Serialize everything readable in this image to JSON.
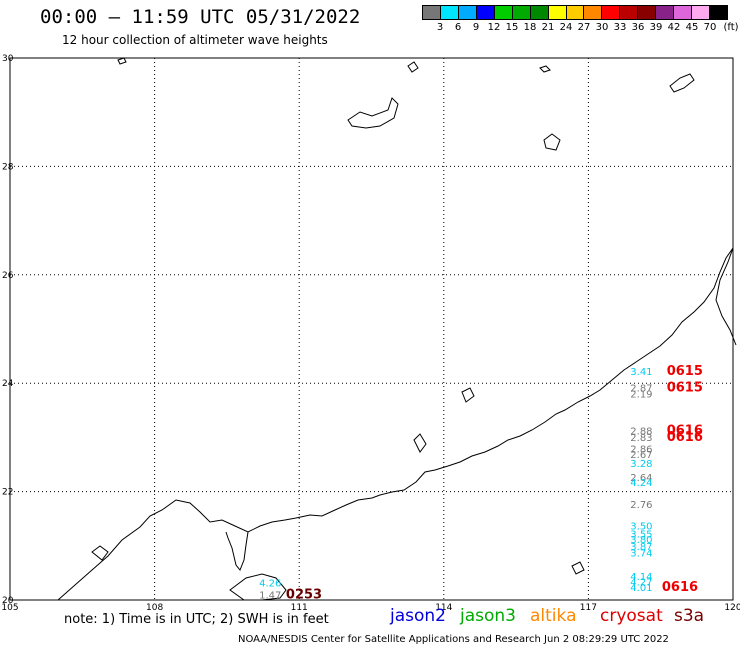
{
  "header": {
    "title": "00:00 – 11:59 UTC 05/31/2022",
    "subtitle": "12 hour collection of altimeter wave heights"
  },
  "legend": {
    "unit": "(ft)",
    "colors": [
      "#777777",
      "#00e5ff",
      "#00aaff",
      "#0000ff",
      "#00cc00",
      "#00aa00",
      "#008800",
      "#ffff00",
      "#ffcc00",
      "#ff8800",
      "#ff0000",
      "#bb0000",
      "#880000",
      "#882288",
      "#dd66dd",
      "#ffaaee",
      "#000000"
    ],
    "labels": [
      "3",
      "6",
      "9",
      "12",
      "15",
      "18",
      "21",
      "24",
      "27",
      "30",
      "33",
      "36",
      "39",
      "42",
      "45",
      "70"
    ]
  },
  "chart_data": {
    "type": "scatter",
    "xlim": [
      105,
      120
    ],
    "ylim": [
      20,
      30
    ],
    "x_ticks": [
      "105",
      "108",
      "111",
      "114",
      "117",
      "120"
    ],
    "y_ticks": [
      "30",
      "28",
      "26",
      "24",
      "22",
      "20"
    ],
    "grid": true,
    "observations": [
      {
        "x": 118.1,
        "y": 24.15,
        "value": "3.41",
        "color": "#00ccee"
      },
      {
        "x": 118.1,
        "y": 23.85,
        "value": "2.87",
        "color": "#777777"
      },
      {
        "x": 118.1,
        "y": 23.74,
        "value": "2.19",
        "color": "#777777"
      },
      {
        "x": 118.1,
        "y": 23.05,
        "value": "2.88",
        "color": "#777777"
      },
      {
        "x": 118.1,
        "y": 22.93,
        "value": "2.83",
        "color": "#777777"
      },
      {
        "x": 118.1,
        "y": 22.72,
        "value": "2.86",
        "color": "#777777"
      },
      {
        "x": 118.1,
        "y": 22.62,
        "value": "2.67",
        "color": "#777777"
      },
      {
        "x": 118.1,
        "y": 22.45,
        "value": "3.28",
        "color": "#00ccee"
      },
      {
        "x": 118.1,
        "y": 22.2,
        "value": "2.64",
        "color": "#777777"
      },
      {
        "x": 118.1,
        "y": 22.1,
        "value": "4.24",
        "color": "#00ccee"
      },
      {
        "x": 118.1,
        "y": 21.7,
        "value": "2.76",
        "color": "#777777"
      },
      {
        "x": 118.1,
        "y": 21.3,
        "value": "3.50",
        "color": "#00ccee"
      },
      {
        "x": 118.1,
        "y": 21.15,
        "value": "3.55",
        "color": "#00ccee"
      },
      {
        "x": 118.1,
        "y": 21.05,
        "value": "3.80",
        "color": "#00ccee"
      },
      {
        "x": 118.1,
        "y": 20.92,
        "value": "3.87",
        "color": "#00ccee"
      },
      {
        "x": 118.1,
        "y": 20.8,
        "value": "3.74",
        "color": "#00ccee"
      },
      {
        "x": 118.1,
        "y": 20.37,
        "value": "4.14",
        "color": "#00ccee"
      },
      {
        "x": 118.1,
        "y": 20.27,
        "value": "4.27",
        "color": "#00ccee"
      },
      {
        "x": 118.1,
        "y": 20.17,
        "value": "4.01",
        "color": "#00ccee"
      },
      {
        "x": 110.4,
        "y": 20.25,
        "value": "4.26",
        "color": "#00ccee"
      },
      {
        "x": 110.4,
        "y": 20.03,
        "value": "1.47",
        "color": "#777777"
      }
    ],
    "pass_labels": [
      {
        "x": 119.0,
        "y": 24.15,
        "text": "0615",
        "color": "#ee0000"
      },
      {
        "x": 119.0,
        "y": 23.85,
        "text": "0615",
        "color": "#ee0000"
      },
      {
        "x": 119.0,
        "y": 23.05,
        "text": "0616",
        "color": "#ee0000"
      },
      {
        "x": 119.0,
        "y": 22.93,
        "text": "0616",
        "color": "#ee0000"
      },
      {
        "x": 118.9,
        "y": 20.17,
        "text": "0616",
        "color": "#ee0000"
      },
      {
        "x": 111.1,
        "y": 20.03,
        "text": "0253",
        "color": "#660000"
      }
    ]
  },
  "footer": {
    "note": "note: 1) Time is in UTC; 2) SWH is in feet",
    "satellites": [
      {
        "name": "jason2",
        "color": "#0000dd"
      },
      {
        "name": "jason3",
        "color": "#00aa00"
      },
      {
        "name": "altika",
        "color": "#ff8800"
      },
      {
        "name": "cryosat",
        "color": "#dd0000"
      },
      {
        "name": "s3a",
        "color": "#770000"
      }
    ],
    "credit": "NOAA/NESDIS Center for Satellite Applications and Research   Jun  2 08:29:29 UTC 2022"
  }
}
